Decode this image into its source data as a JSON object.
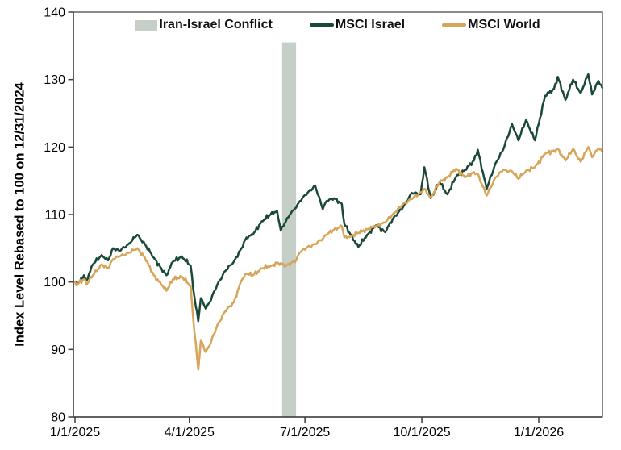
{
  "chart_data": {
    "type": "line",
    "title": "",
    "xlabel": "",
    "ylabel": "Index Level Rebased to 100 on 12/31/2024",
    "ylim": [
      80,
      140
    ],
    "y_ticks": [
      80,
      90,
      100,
      110,
      120,
      130,
      140
    ],
    "x_ticks": [
      "1/1/2025",
      "4/1/2025",
      "7/1/2025",
      "10/1/2025",
      "1/1/2026"
    ],
    "x_tick_dates": [
      "2025-01-01",
      "2025-04-01",
      "2025-07-01",
      "2025-10-01",
      "2026-01-01"
    ],
    "grid": false,
    "legend_position": "top",
    "annotation_band": {
      "label": "Iran-Israel Conflict",
      "start": "2025-06-13",
      "end": "2025-06-24",
      "top_value": 135.5,
      "color": "#c5cfc7"
    },
    "series": [
      {
        "name": "MSCI Israel",
        "color": "#1a4939",
        "points": [
          [
            "2025-01-01",
            100
          ],
          [
            "2025-01-03",
            99.6
          ],
          [
            "2025-01-08",
            101
          ],
          [
            "2025-01-10",
            100.2
          ],
          [
            "2025-01-15",
            102.6
          ],
          [
            "2025-01-22",
            104
          ],
          [
            "2025-01-27",
            103.2
          ],
          [
            "2025-01-31",
            105
          ],
          [
            "2025-02-05",
            104.6
          ],
          [
            "2025-02-12",
            105.6
          ],
          [
            "2025-02-19",
            107
          ],
          [
            "2025-02-25",
            105.6
          ],
          [
            "2025-03-04",
            103.6
          ],
          [
            "2025-03-10",
            102
          ],
          [
            "2025-03-14",
            101
          ],
          [
            "2025-03-19",
            103
          ],
          [
            "2025-03-26",
            103.8
          ],
          [
            "2025-04-02",
            102.4
          ],
          [
            "2025-04-04",
            99
          ],
          [
            "2025-04-08",
            94.2
          ],
          [
            "2025-04-10",
            97.6
          ],
          [
            "2025-04-14",
            96
          ],
          [
            "2025-04-17",
            97
          ],
          [
            "2025-04-23",
            99.6
          ],
          [
            "2025-04-29",
            101.6
          ],
          [
            "2025-05-06",
            103
          ],
          [
            "2025-05-12",
            105
          ],
          [
            "2025-05-16",
            106.6
          ],
          [
            "2025-05-21",
            107
          ],
          [
            "2025-05-28",
            109
          ],
          [
            "2025-06-04",
            110
          ],
          [
            "2025-06-09",
            110.6
          ],
          [
            "2025-06-12",
            107.6
          ],
          [
            "2025-06-16",
            109
          ],
          [
            "2025-06-20",
            110.2
          ],
          [
            "2025-06-24",
            111
          ],
          [
            "2025-06-27",
            112
          ],
          [
            "2025-07-03",
            113.2
          ],
          [
            "2025-07-09",
            114.3
          ],
          [
            "2025-07-15",
            110.8
          ],
          [
            "2025-07-18",
            112
          ],
          [
            "2025-07-24",
            112.4
          ],
          [
            "2025-07-30",
            111.6
          ],
          [
            "2025-08-01",
            108.6
          ],
          [
            "2025-08-06",
            107
          ],
          [
            "2025-08-12",
            105.2
          ],
          [
            "2025-08-19",
            107
          ],
          [
            "2025-08-26",
            108.4
          ],
          [
            "2025-09-02",
            107.4
          ],
          [
            "2025-09-09",
            109.6
          ],
          [
            "2025-09-16",
            111
          ],
          [
            "2025-09-23",
            113.2
          ],
          [
            "2025-09-30",
            113
          ],
          [
            "2025-10-03",
            117
          ],
          [
            "2025-10-08",
            112.4
          ],
          [
            "2025-10-15",
            114.8
          ],
          [
            "2025-10-21",
            113
          ],
          [
            "2025-10-28",
            115.6
          ],
          [
            "2025-11-04",
            116.6
          ],
          [
            "2025-11-11",
            118
          ],
          [
            "2025-11-14",
            119.6
          ],
          [
            "2025-11-21",
            113.8
          ],
          [
            "2025-11-28",
            117.6
          ],
          [
            "2025-12-04",
            119.6
          ],
          [
            "2025-12-11",
            123.4
          ],
          [
            "2025-12-16",
            121
          ],
          [
            "2025-12-22",
            124
          ],
          [
            "2025-12-29",
            121
          ],
          [
            "2026-01-06",
            127.6
          ],
          [
            "2026-01-13",
            128.6
          ],
          [
            "2026-01-16",
            130.4
          ],
          [
            "2026-01-22",
            127
          ],
          [
            "2026-01-28",
            130
          ],
          [
            "2026-02-03",
            128
          ],
          [
            "2026-02-09",
            130.8
          ],
          [
            "2026-02-12",
            127.8
          ],
          [
            "2026-02-17",
            129.8
          ],
          [
            "2026-02-20",
            128.8
          ]
        ]
      },
      {
        "name": "MSCI World",
        "color": "#d6a559",
        "points": [
          [
            "2025-01-01",
            100
          ],
          [
            "2025-01-03",
            99.7
          ],
          [
            "2025-01-08",
            100.4
          ],
          [
            "2025-01-10",
            99.6
          ],
          [
            "2025-01-15",
            101
          ],
          [
            "2025-01-22",
            102.6
          ],
          [
            "2025-01-27",
            102
          ],
          [
            "2025-01-31",
            103.4
          ],
          [
            "2025-02-05",
            103.8
          ],
          [
            "2025-02-12",
            104.3
          ],
          [
            "2025-02-19",
            105
          ],
          [
            "2025-02-25",
            103.6
          ],
          [
            "2025-03-04",
            101
          ],
          [
            "2025-03-10",
            99.6
          ],
          [
            "2025-03-14",
            98.7
          ],
          [
            "2025-03-19",
            100.4
          ],
          [
            "2025-03-26",
            100.8
          ],
          [
            "2025-04-02",
            99.4
          ],
          [
            "2025-04-04",
            94.6
          ],
          [
            "2025-04-08",
            87
          ],
          [
            "2025-04-10",
            91.4
          ],
          [
            "2025-04-14",
            89.6
          ],
          [
            "2025-04-17",
            90.6
          ],
          [
            "2025-04-23",
            93.6
          ],
          [
            "2025-04-29",
            95.6
          ],
          [
            "2025-05-06",
            97
          ],
          [
            "2025-05-12",
            100.2
          ],
          [
            "2025-05-16",
            101.2
          ],
          [
            "2025-05-21",
            101
          ],
          [
            "2025-05-28",
            102
          ],
          [
            "2025-06-04",
            102.4
          ],
          [
            "2025-06-09",
            102.8
          ],
          [
            "2025-06-12",
            102.8
          ],
          [
            "2025-06-16",
            102.4
          ],
          [
            "2025-06-20",
            102.8
          ],
          [
            "2025-06-24",
            103.2
          ],
          [
            "2025-06-27",
            104.4
          ],
          [
            "2025-07-03",
            105.2
          ],
          [
            "2025-07-09",
            105.6
          ],
          [
            "2025-07-15",
            106.4
          ],
          [
            "2025-07-18",
            107
          ],
          [
            "2025-07-24",
            107.8
          ],
          [
            "2025-07-30",
            108.3
          ],
          [
            "2025-08-01",
            106.6
          ],
          [
            "2025-08-06",
            106.8
          ],
          [
            "2025-08-12",
            107.3
          ],
          [
            "2025-08-19",
            107.8
          ],
          [
            "2025-08-26",
            108.3
          ],
          [
            "2025-09-02",
            108.8
          ],
          [
            "2025-09-09",
            110.2
          ],
          [
            "2025-09-16",
            111.5
          ],
          [
            "2025-09-23",
            112.3
          ],
          [
            "2025-09-30",
            113.3
          ],
          [
            "2025-10-03",
            113.8
          ],
          [
            "2025-10-08",
            112.5
          ],
          [
            "2025-10-15",
            114.8
          ],
          [
            "2025-10-21",
            115.5
          ],
          [
            "2025-10-28",
            116.8
          ],
          [
            "2025-11-04",
            115.5
          ],
          [
            "2025-11-11",
            116.3
          ],
          [
            "2025-11-14",
            116
          ],
          [
            "2025-11-21",
            112.8
          ],
          [
            "2025-11-28",
            115.5
          ],
          [
            "2025-12-04",
            116.6
          ],
          [
            "2025-12-11",
            116.4
          ],
          [
            "2025-12-16",
            115.3
          ],
          [
            "2025-12-22",
            116.5
          ],
          [
            "2025-12-29",
            117
          ],
          [
            "2026-01-06",
            119
          ],
          [
            "2026-01-13",
            119.5
          ],
          [
            "2026-01-16",
            119.7
          ],
          [
            "2026-01-22",
            118
          ],
          [
            "2026-01-28",
            119.7
          ],
          [
            "2026-02-03",
            117.8
          ],
          [
            "2026-02-09",
            120
          ],
          [
            "2026-02-12",
            118.5
          ],
          [
            "2026-02-17",
            119.8
          ],
          [
            "2026-02-20",
            119.3
          ]
        ]
      }
    ]
  },
  "legend": {
    "items": [
      {
        "label": "Iran-Israel Conflict",
        "type": "band",
        "color": "#c5cfc7"
      },
      {
        "label": "MSCI Israel",
        "type": "line",
        "color": "#1a4939"
      },
      {
        "label": "MSCI World",
        "type": "line",
        "color": "#d6a559"
      }
    ]
  },
  "colors": {
    "axis": "#3c3c3c",
    "text": "#000000",
    "background": "#ffffff"
  }
}
